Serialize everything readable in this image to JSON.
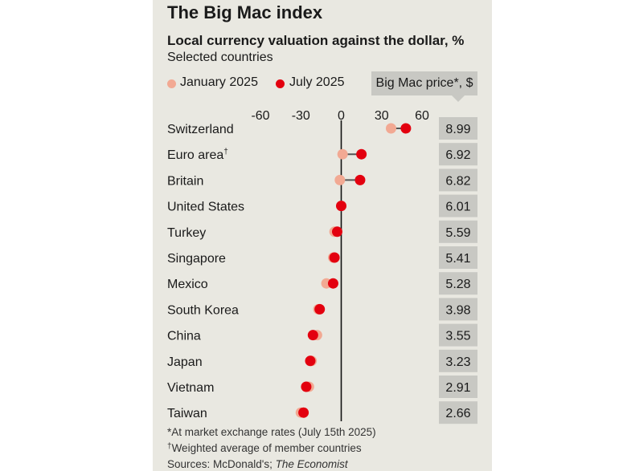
{
  "title": "The Big Mac index",
  "subtitle": "Local currency valuation against the dollar, %",
  "subsubtitle": "Selected countries",
  "legend": {
    "january": "January 2025",
    "july": "July 2025"
  },
  "price_header": "Big Mac price*, $",
  "colors": {
    "january": "#f2a993",
    "july": "#e3000f",
    "zero_line": "#111111",
    "price_box": "#c8c8c3",
    "background": "#e9e8e1"
  },
  "notes": {
    "note1": "*At market exchange rates (July 15th 2025)",
    "note2_mark": "†",
    "note2": "Weighted average of member countries",
    "note3_prefix": "Sources: McDonald's; ",
    "note3_italic": "The Economist"
  },
  "chart_data": {
    "type": "dot",
    "title": "The Big Mac index",
    "subtitle": "Local currency valuation against the dollar, %",
    "xlim": [
      -65,
      65
    ],
    "xticks": [
      "-60",
      "-30",
      "0",
      "30",
      "60"
    ],
    "tick_values": [
      -60,
      -30,
      0,
      30,
      60
    ],
    "categories": [
      "Switzerland",
      "Euro area†",
      "Britain",
      "United States",
      "Turkey",
      "Singapore",
      "Mexico",
      "South Korea",
      "China",
      "Japan",
      "Vietnam",
      "Taiwan"
    ],
    "series": [
      {
        "name": "January 2025",
        "values": [
          37,
          1,
          -1,
          0,
          -5,
          -6,
          -11,
          -17,
          -18,
          -22,
          -24,
          -30
        ]
      },
      {
        "name": "July 2025",
        "values": [
          48,
          15,
          14,
          0,
          -3,
          -5,
          -6,
          -16,
          -21,
          -23,
          -26,
          -28
        ]
      }
    ],
    "big_mac_price": [
      "8.99",
      "6.92",
      "6.82",
      "6.01",
      "5.59",
      "5.41",
      "5.28",
      "3.98",
      "3.55",
      "3.23",
      "2.91",
      "2.66"
    ],
    "legend_position": "top-left",
    "grid": false
  }
}
